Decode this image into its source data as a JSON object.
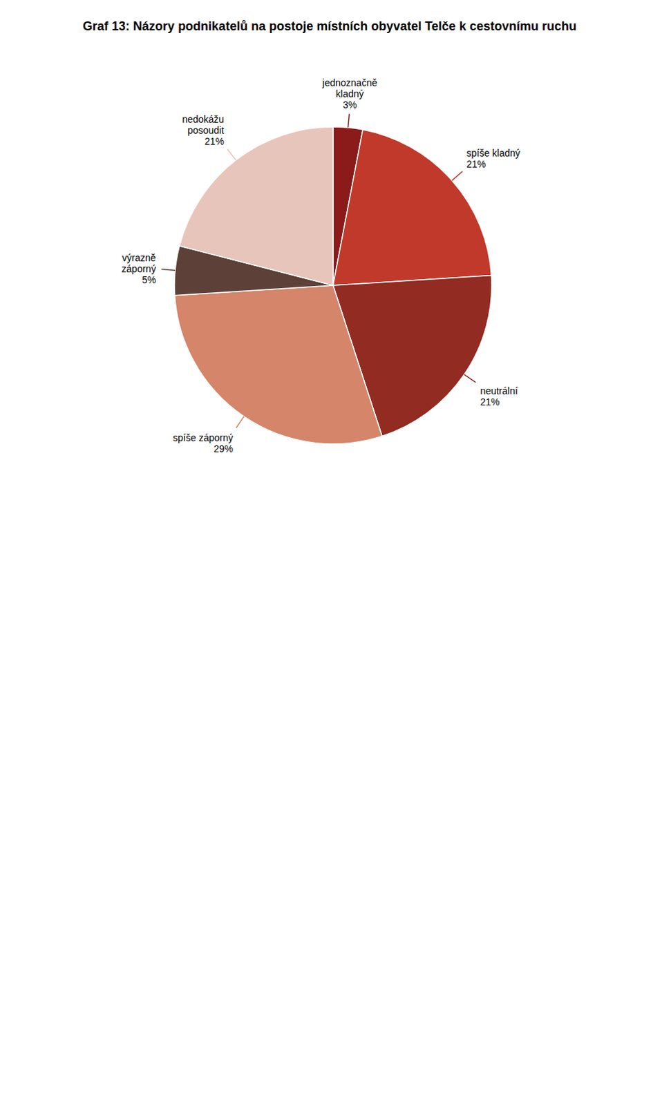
{
  "chart_data": {
    "type": "pie",
    "title": "Graf 13: Názory podnikatelů na postoje místních obyvatel Telče k cestovnímu ruchu",
    "categories": [
      "jednoznačně\nkladný",
      "spíše kladný",
      "neutrální",
      "spíše záporný",
      "výrazně\nzáporný",
      "nedokážu\nposoudit"
    ],
    "values": [
      3,
      21,
      21,
      29,
      5,
      21
    ],
    "value_labels": [
      "3%",
      "21%",
      "21%",
      "29%",
      "5%",
      "21%"
    ],
    "colors": [
      "#8b1a1a",
      "#c0392b",
      "#922b21",
      "#d4856a",
      "#5d4037",
      "#e8c5bb"
    ],
    "data_labels": true
  }
}
